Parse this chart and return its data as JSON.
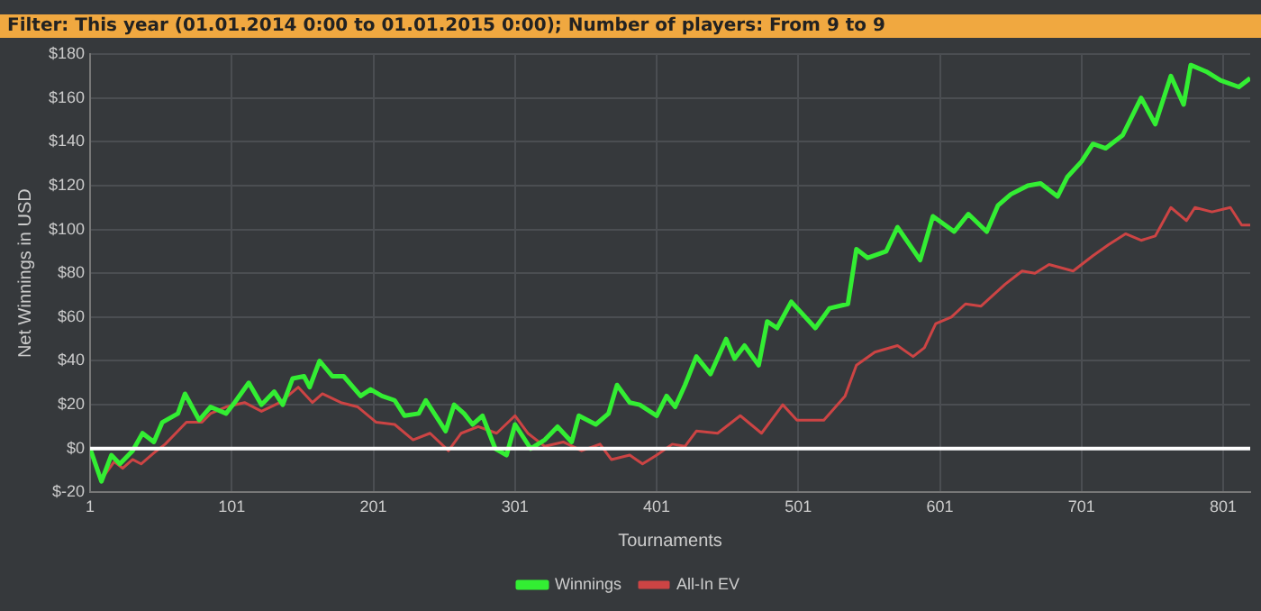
{
  "chart_data": {
    "type": "line",
    "title": "Filter: This year (01.01.2014 0:00 to 01.01.2015 0:00); Number of players: From 9 to 9",
    "xlabel": "Tournaments",
    "ylabel": "Net Winnings in USD",
    "xlim": [
      1,
      820
    ],
    "xticks": [
      1,
      101,
      201,
      301,
      401,
      501,
      601,
      701,
      801
    ],
    "ylim": [
      -20,
      180
    ],
    "yticks": [
      {
        "value": -20,
        "label": "$-20"
      },
      {
        "value": 0,
        "label": "$0"
      },
      {
        "value": 20,
        "label": "$20"
      },
      {
        "value": 40,
        "label": "$40"
      },
      {
        "value": 60,
        "label": "$60"
      },
      {
        "value": 80,
        "label": "$80"
      },
      {
        "value": 100,
        "label": "$100"
      },
      {
        "value": 120,
        "label": "$120"
      },
      {
        "value": 140,
        "label": "$140"
      },
      {
        "value": 160,
        "label": "$160"
      },
      {
        "value": 180,
        "label": "$180"
      }
    ],
    "grid": true,
    "legend": "bottom",
    "marker": "none",
    "line_style": "solid",
    "ref_lines": [
      {
        "axis": "y",
        "value": 0,
        "color": "#ffffff"
      }
    ],
    "series": [
      {
        "name": "Winnings",
        "color": "#33ee33",
        "x": [
          1,
          9,
          16,
          22,
          31,
          38,
          46,
          52,
          63,
          68,
          78,
          86,
          97,
          103,
          113,
          122,
          131,
          137,
          144,
          152,
          156,
          163,
          172,
          180,
          192,
          199,
          207,
          216,
          223,
          233,
          238,
          252,
          258,
          265,
          271,
          278,
          287,
          295,
          301,
          312,
          322,
          331,
          341,
          346,
          358,
          367,
          373,
          382,
          389,
          401,
          408,
          414,
          421,
          429,
          439,
          450,
          456,
          463,
          473,
          479,
          486,
          496,
          513,
          523,
          536,
          542,
          550,
          563,
          571,
          587,
          596,
          611,
          621,
          634,
          642,
          651,
          663,
          672,
          684,
          691,
          701,
          709,
          718,
          730,
          743,
          753,
          764,
          773,
          778,
          789,
          799,
          812,
          820
        ],
        "values": [
          0,
          -15,
          -3,
          -7,
          -1,
          7,
          3,
          12,
          16,
          25,
          13,
          19,
          16,
          21,
          30,
          20,
          26,
          20,
          32,
          33,
          28,
          40,
          33,
          33,
          24,
          27,
          24,
          22,
          15,
          16,
          22,
          8,
          20,
          16,
          11,
          15,
          0,
          -3,
          11,
          0,
          4,
          10,
          3,
          15,
          11,
          16,
          29,
          21,
          20,
          15,
          24,
          19,
          29,
          42,
          34,
          50,
          41,
          47,
          38,
          58,
          55,
          67,
          55,
          64,
          66,
          91,
          87,
          90,
          101,
          86,
          106,
          99,
          107,
          99,
          111,
          116,
          120,
          121,
          115,
          124,
          131,
          139,
          137,
          143,
          160,
          148,
          170,
          157,
          175,
          172,
          168,
          165,
          169
        ]
      },
      {
        "name": "All-In EV",
        "color": "#cc4444",
        "x": [
          1,
          9,
          18,
          24,
          31,
          37,
          46,
          54,
          63,
          69,
          80,
          86,
          97,
          110,
          122,
          135,
          148,
          158,
          165,
          178,
          190,
          203,
          216,
          229,
          241,
          254,
          263,
          275,
          288,
          301,
          310,
          322,
          335,
          348,
          361,
          369,
          382,
          391,
          401,
          412,
          421,
          429,
          444,
          460,
          475,
          490,
          500,
          519,
          534,
          542,
          555,
          571,
          582,
          590,
          598,
          609,
          619,
          630,
          647,
          659,
          668,
          678,
          695,
          709,
          720,
          732,
          743,
          753,
          764,
          775,
          781,
          793,
          806,
          814,
          820
        ],
        "values": [
          0,
          -14,
          -6,
          -9,
          -5,
          -7,
          -2,
          2,
          8,
          12,
          12,
          16,
          19,
          21,
          17,
          21,
          28,
          21,
          25,
          21,
          19,
          12,
          11,
          4,
          7,
          -1,
          7,
          10,
          7,
          15,
          7,
          1,
          3,
          -1,
          2,
          -5,
          -3,
          -7,
          -3,
          2,
          1,
          8,
          7,
          15,
          7,
          20,
          13,
          13,
          24,
          38,
          44,
          47,
          42,
          46,
          57,
          60,
          66,
          65,
          75,
          81,
          80,
          84,
          81,
          88,
          93,
          98,
          95,
          97,
          110,
          104,
          110,
          108,
          110,
          102,
          102
        ]
      }
    ]
  }
}
